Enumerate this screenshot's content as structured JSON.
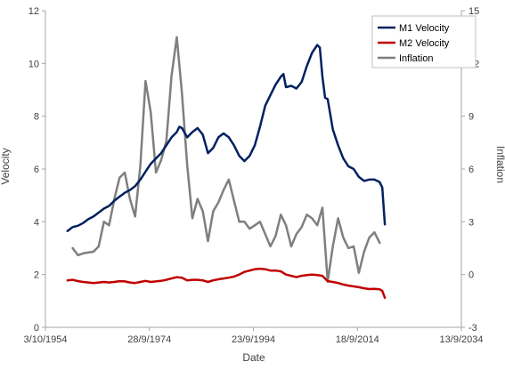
{
  "chart_data": {
    "type": "line",
    "xlabel": "Date",
    "ylabel_left": "Velocity",
    "ylabel_right": "Inflation",
    "xlim": [
      "3/10/1954",
      "13/9/2034"
    ],
    "x_ticks": [
      "3/10/1954",
      "28/9/1974",
      "23/9/1994",
      "18/9/2014",
      "13/9/2034"
    ],
    "ylim_left": [
      0,
      12
    ],
    "y_ticks_left": [
      "0",
      "2",
      "4",
      "6",
      "8",
      "10",
      "12"
    ],
    "ylim_right": [
      -3,
      15
    ],
    "y_ticks_right": [
      "-3",
      "0",
      "3",
      "6",
      "9",
      "12",
      "15"
    ],
    "grid": false,
    "legend_position": "top-right",
    "series": [
      {
        "name": "M1 Velocity",
        "color": "#002060",
        "axis": "left",
        "points": [
          [
            1959.0,
            3.65
          ],
          [
            1960.0,
            3.8
          ],
          [
            1961.0,
            3.85
          ],
          [
            1962.0,
            3.95
          ],
          [
            1963.0,
            4.1
          ],
          [
            1964.0,
            4.2
          ],
          [
            1965.0,
            4.35
          ],
          [
            1966.0,
            4.5
          ],
          [
            1967.0,
            4.6
          ],
          [
            1968.0,
            4.8
          ],
          [
            1969.0,
            4.95
          ],
          [
            1970.0,
            5.1
          ],
          [
            1971.0,
            5.2
          ],
          [
            1972.0,
            5.35
          ],
          [
            1973.0,
            5.6
          ],
          [
            1974.0,
            5.9
          ],
          [
            1975.0,
            6.2
          ],
          [
            1976.0,
            6.4
          ],
          [
            1977.0,
            6.6
          ],
          [
            1978.0,
            6.9
          ],
          [
            1979.0,
            7.2
          ],
          [
            1980.0,
            7.4
          ],
          [
            1980.5,
            7.6
          ],
          [
            1981.0,
            7.55
          ],
          [
            1982.0,
            7.2
          ],
          [
            1983.0,
            7.4
          ],
          [
            1984.0,
            7.55
          ],
          [
            1985.0,
            7.3
          ],
          [
            1986.0,
            6.6
          ],
          [
            1987.0,
            6.8
          ],
          [
            1988.0,
            7.2
          ],
          [
            1989.0,
            7.35
          ],
          [
            1990.0,
            7.2
          ],
          [
            1991.0,
            6.9
          ],
          [
            1992.0,
            6.5
          ],
          [
            1993.0,
            6.3
          ],
          [
            1994.0,
            6.5
          ],
          [
            1995.0,
            6.9
          ],
          [
            1996.0,
            7.6
          ],
          [
            1997.0,
            8.4
          ],
          [
            1998.0,
            8.8
          ],
          [
            1999.0,
            9.2
          ],
          [
            2000.0,
            9.5
          ],
          [
            2000.5,
            9.6
          ],
          [
            2001.0,
            9.1
          ],
          [
            2002.0,
            9.15
          ],
          [
            2003.0,
            9.05
          ],
          [
            2004.0,
            9.3
          ],
          [
            2005.0,
            9.9
          ],
          [
            2006.0,
            10.4
          ],
          [
            2007.0,
            10.7
          ],
          [
            2007.5,
            10.6
          ],
          [
            2008.0,
            9.5
          ],
          [
            2008.5,
            8.7
          ],
          [
            2009.0,
            8.65
          ],
          [
            2010.0,
            7.5
          ],
          [
            2011.0,
            6.9
          ],
          [
            2012.0,
            6.4
          ],
          [
            2013.0,
            6.1
          ],
          [
            2014.0,
            6.0
          ],
          [
            2015.0,
            5.7
          ],
          [
            2016.0,
            5.55
          ],
          [
            2017.0,
            5.6
          ],
          [
            2018.0,
            5.6
          ],
          [
            2019.0,
            5.5
          ],
          [
            2019.5,
            5.3
          ],
          [
            2020.0,
            3.9
          ]
        ]
      },
      {
        "name": "M2 Velocity",
        "color": "#c00000",
        "axis": "left",
        "points": [
          [
            1959.0,
            1.78
          ],
          [
            1960.0,
            1.8
          ],
          [
            1961.0,
            1.75
          ],
          [
            1962.0,
            1.72
          ],
          [
            1963.0,
            1.7
          ],
          [
            1964.0,
            1.68
          ],
          [
            1965.0,
            1.7
          ],
          [
            1966.0,
            1.72
          ],
          [
            1967.0,
            1.7
          ],
          [
            1968.0,
            1.72
          ],
          [
            1969.0,
            1.75
          ],
          [
            1970.0,
            1.74
          ],
          [
            1971.0,
            1.7
          ],
          [
            1972.0,
            1.68
          ],
          [
            1973.0,
            1.72
          ],
          [
            1974.0,
            1.76
          ],
          [
            1975.0,
            1.72
          ],
          [
            1976.0,
            1.74
          ],
          [
            1977.0,
            1.76
          ],
          [
            1978.0,
            1.8
          ],
          [
            1979.0,
            1.85
          ],
          [
            1980.0,
            1.9
          ],
          [
            1981.0,
            1.88
          ],
          [
            1982.0,
            1.78
          ],
          [
            1983.0,
            1.8
          ],
          [
            1984.0,
            1.8
          ],
          [
            1985.0,
            1.78
          ],
          [
            1986.0,
            1.72
          ],
          [
            1987.0,
            1.78
          ],
          [
            1988.0,
            1.82
          ],
          [
            1989.0,
            1.85
          ],
          [
            1990.0,
            1.88
          ],
          [
            1991.0,
            1.92
          ],
          [
            1992.0,
            2.0
          ],
          [
            1993.0,
            2.1
          ],
          [
            1994.0,
            2.15
          ],
          [
            1995.0,
            2.2
          ],
          [
            1996.0,
            2.22
          ],
          [
            1997.0,
            2.2
          ],
          [
            1998.0,
            2.15
          ],
          [
            1999.0,
            2.15
          ],
          [
            2000.0,
            2.12
          ],
          [
            2001.0,
            2.0
          ],
          [
            2002.0,
            1.95
          ],
          [
            2003.0,
            1.9
          ],
          [
            2004.0,
            1.95
          ],
          [
            2005.0,
            1.98
          ],
          [
            2006.0,
            2.0
          ],
          [
            2007.0,
            1.98
          ],
          [
            2008.0,
            1.95
          ],
          [
            2009.0,
            1.75
          ],
          [
            2010.0,
            1.72
          ],
          [
            2011.0,
            1.68
          ],
          [
            2012.0,
            1.62
          ],
          [
            2013.0,
            1.58
          ],
          [
            2014.0,
            1.55
          ],
          [
            2015.0,
            1.52
          ],
          [
            2016.0,
            1.48
          ],
          [
            2017.0,
            1.45
          ],
          [
            2018.0,
            1.46
          ],
          [
            2019.0,
            1.44
          ],
          [
            2019.5,
            1.38
          ],
          [
            2020.0,
            1.12
          ]
        ]
      },
      {
        "name": "Inflation",
        "color": "#7f7f7f",
        "axis": "right",
        "points": [
          [
            1960.0,
            1.5
          ],
          [
            1961.0,
            1.1
          ],
          [
            1962.0,
            1.2
          ],
          [
            1963.0,
            1.25
          ],
          [
            1964.0,
            1.3
          ],
          [
            1965.0,
            1.6
          ],
          [
            1966.0,
            3.0
          ],
          [
            1967.0,
            2.8
          ],
          [
            1968.0,
            4.3
          ],
          [
            1969.0,
            5.5
          ],
          [
            1970.0,
            5.8
          ],
          [
            1971.0,
            4.3
          ],
          [
            1972.0,
            3.3
          ],
          [
            1973.0,
            6.2
          ],
          [
            1974.0,
            11.0
          ],
          [
            1975.0,
            9.2
          ],
          [
            1976.0,
            5.8
          ],
          [
            1977.0,
            6.5
          ],
          [
            1978.0,
            7.6
          ],
          [
            1979.0,
            11.3
          ],
          [
            1980.0,
            13.5
          ],
          [
            1981.0,
            10.3
          ],
          [
            1982.0,
            6.2
          ],
          [
            1983.0,
            3.2
          ],
          [
            1984.0,
            4.3
          ],
          [
            1985.0,
            3.6
          ],
          [
            1986.0,
            1.9
          ],
          [
            1987.0,
            3.6
          ],
          [
            1988.0,
            4.1
          ],
          [
            1989.0,
            4.8
          ],
          [
            1990.0,
            5.4
          ],
          [
            1991.0,
            4.2
          ],
          [
            1992.0,
            3.0
          ],
          [
            1993.0,
            3.0
          ],
          [
            1994.0,
            2.6
          ],
          [
            1995.0,
            2.8
          ],
          [
            1996.0,
            3.0
          ],
          [
            1997.0,
            2.3
          ],
          [
            1998.0,
            1.6
          ],
          [
            1999.0,
            2.2
          ],
          [
            2000.0,
            3.4
          ],
          [
            2001.0,
            2.8
          ],
          [
            2002.0,
            1.6
          ],
          [
            2003.0,
            2.3
          ],
          [
            2004.0,
            2.7
          ],
          [
            2005.0,
            3.4
          ],
          [
            2006.0,
            3.2
          ],
          [
            2007.0,
            2.8
          ],
          [
            2008.0,
            3.8
          ],
          [
            2009.0,
            -0.4
          ],
          [
            2010.0,
            1.6
          ],
          [
            2011.0,
            3.2
          ],
          [
            2012.0,
            2.1
          ],
          [
            2013.0,
            1.5
          ],
          [
            2014.0,
            1.6
          ],
          [
            2015.0,
            0.1
          ],
          [
            2016.0,
            1.3
          ],
          [
            2017.0,
            2.1
          ],
          [
            2018.0,
            2.4
          ],
          [
            2019.0,
            1.8
          ]
        ]
      }
    ]
  }
}
